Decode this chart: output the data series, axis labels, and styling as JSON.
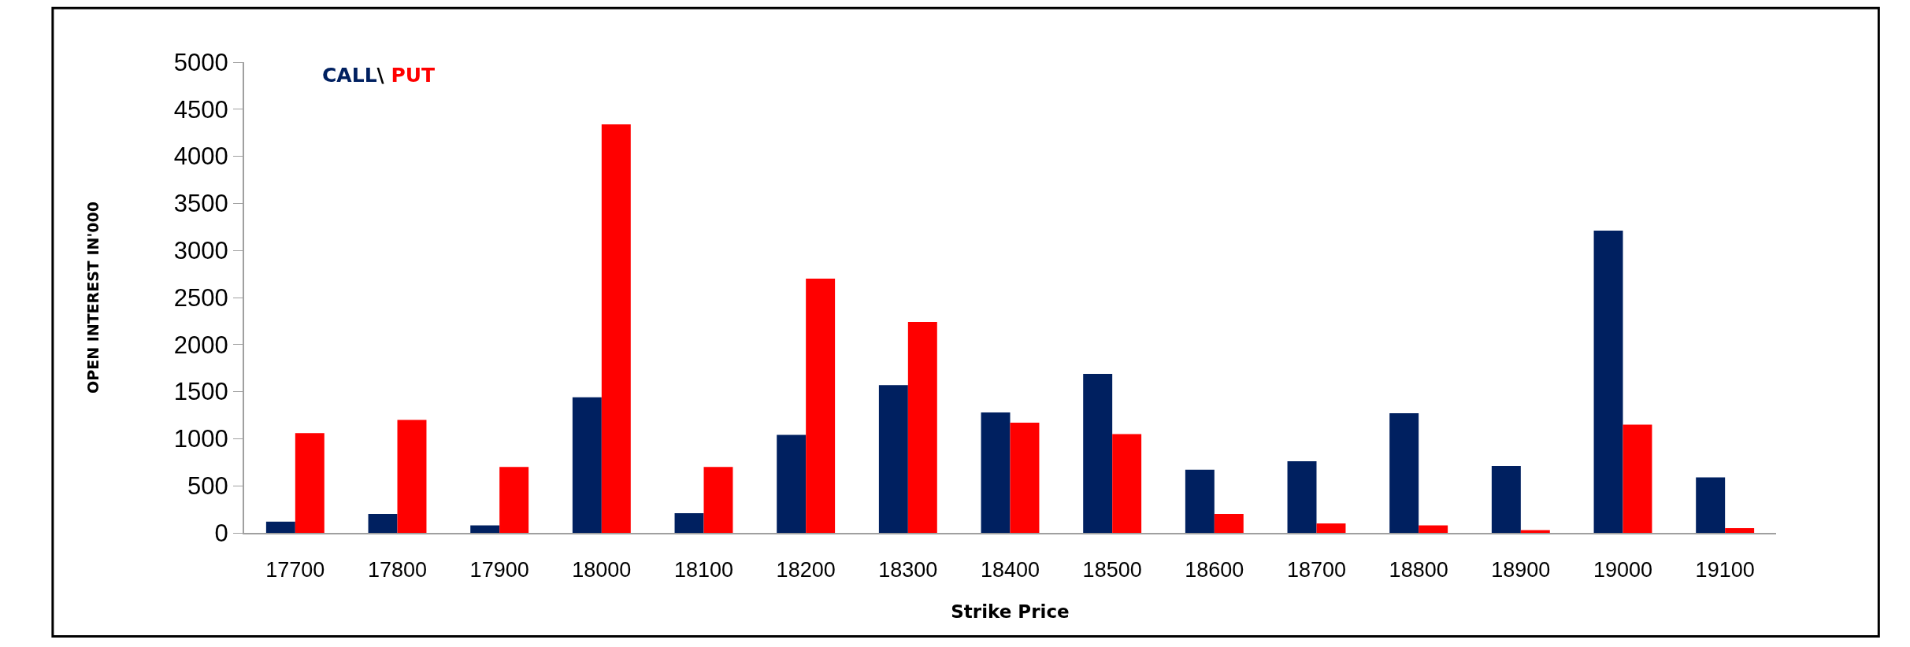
{
  "chart_data": {
    "type": "bar",
    "xlabel": "Strike Price",
    "ylabel": "OPEN INTEREST IN'000",
    "categories": [
      "17700",
      "17800",
      "17900",
      "18000",
      "18100",
      "18200",
      "18300",
      "18400",
      "18500",
      "18600",
      "18700",
      "18800",
      "18900",
      "19000",
      "19100"
    ],
    "series": [
      {
        "name": "CALL",
        "color": "#002060",
        "values": [
          120,
          200,
          80,
          1440,
          210,
          1040,
          1570,
          1280,
          1690,
          670,
          760,
          1270,
          710,
          3210,
          590
        ]
      },
      {
        "name": "PUT",
        "color": "#ff0000",
        "values": [
          1060,
          1200,
          700,
          4340,
          700,
          2700,
          2240,
          1170,
          1050,
          200,
          100,
          80,
          30,
          1150,
          50
        ]
      }
    ],
    "annotations": [
      "\\"
    ],
    "ylim": [
      0,
      5000
    ],
    "yticks": [
      0,
      500,
      1000,
      1500,
      2000,
      2500,
      3000,
      3500,
      4000,
      4500,
      5000
    ],
    "legend": "top left"
  }
}
